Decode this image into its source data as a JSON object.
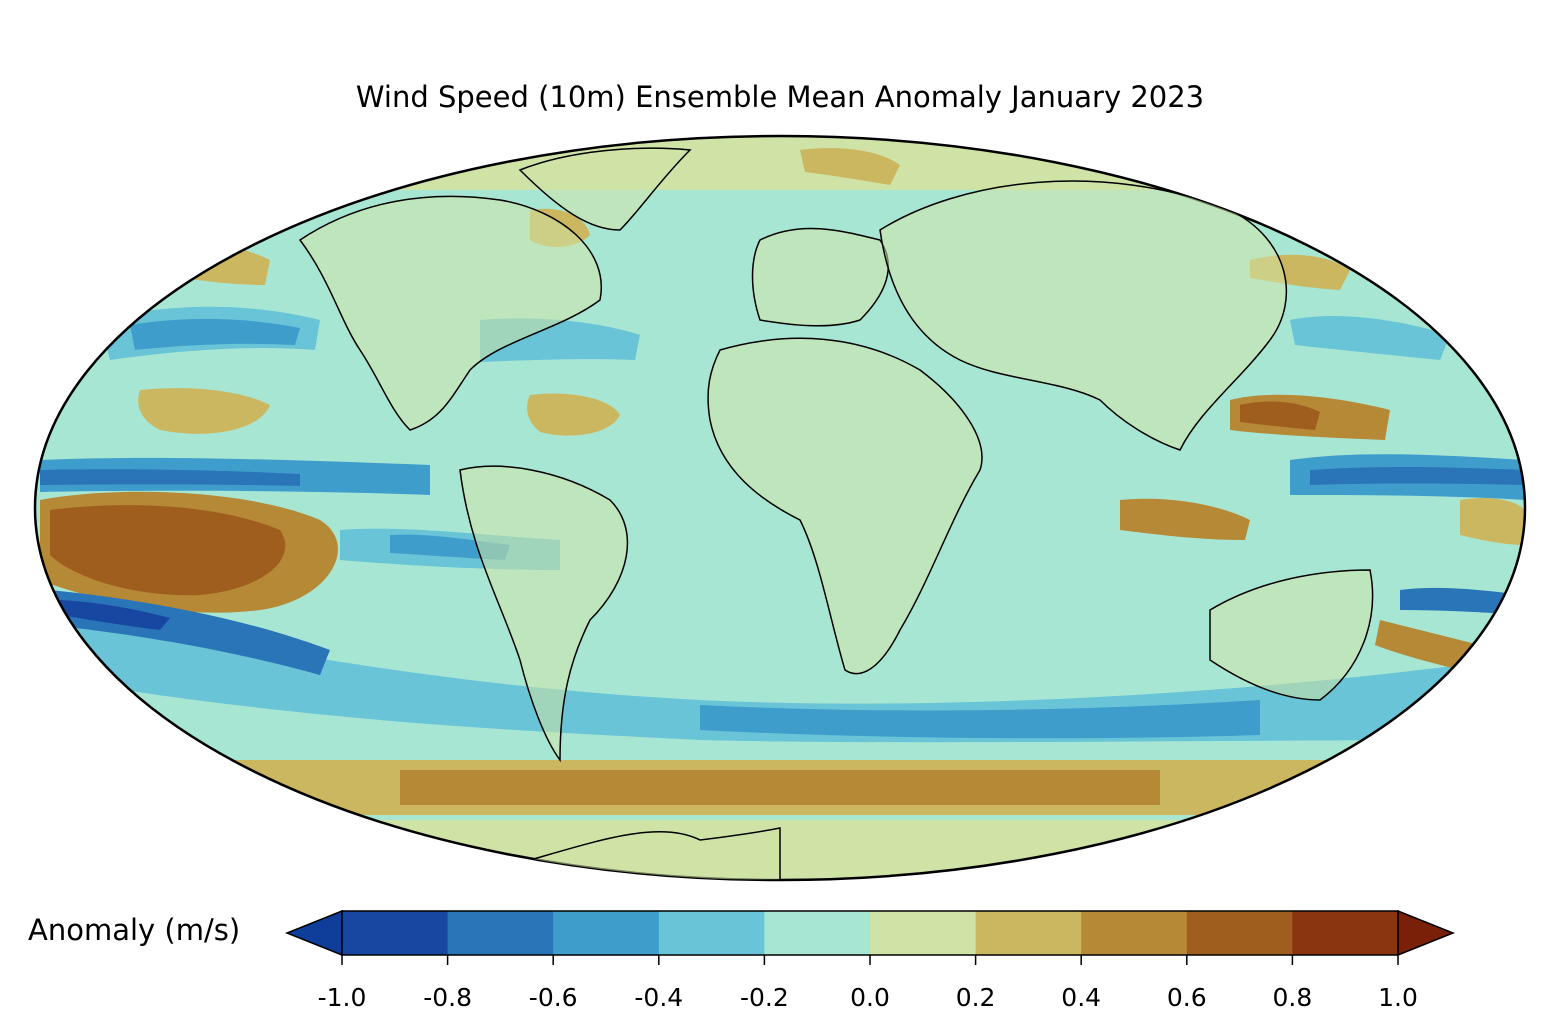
{
  "title": "Wind Speed (10m) Ensemble Mean Anomaly January 2023",
  "projection": "Mollweide",
  "colorbar": {
    "label": "Anomaly (m/s)",
    "ticks": [
      "-1.0",
      "-0.8",
      "-0.6",
      "-0.4",
      "-0.2",
      "0.0",
      "0.2",
      "0.4",
      "0.6",
      "0.8",
      "1.0"
    ],
    "colors": [
      "#0f3d9a",
      "#1747a0",
      "#2a74b8",
      "#3f9dcb",
      "#68c4d6",
      "#a8e6d4",
      "#d0e3a6",
      "#cbb760",
      "#b68936",
      "#a05e1e",
      "#8a3410",
      "#7a1f08"
    ],
    "extend": "both"
  },
  "colors": {
    "land_outline": "#000000",
    "borders": "#808080"
  }
}
